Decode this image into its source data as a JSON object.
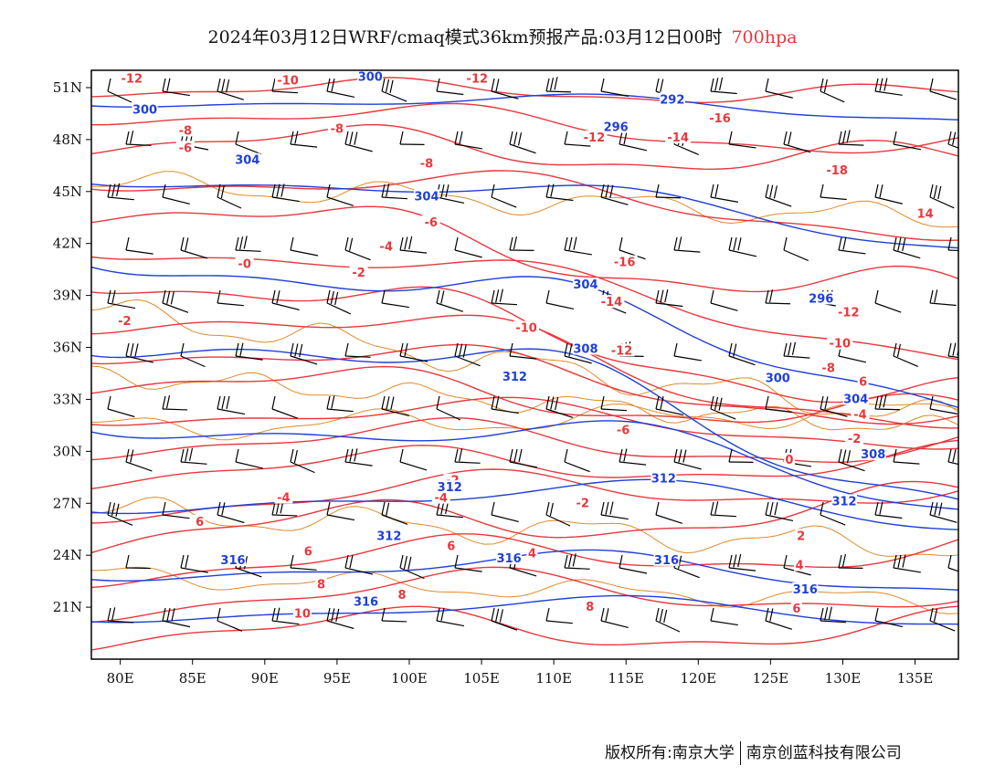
{
  "title": {
    "main": "2024年03月12日WRF/cmaq模式36km预报产品:03月12日00时",
    "level": "700hpa"
  },
  "footer": {
    "copyright": "版权所有:南京大学",
    "company": "南京创蓝科技有限公司"
  },
  "map": {
    "lon_range": [
      78,
      138
    ],
    "lat_range": [
      18,
      52
    ],
    "lon_ticks": [
      "80E",
      "85E",
      "90E",
      "95E",
      "100E",
      "105E",
      "110E",
      "115E",
      "120E",
      "125E",
      "130E",
      "135E"
    ],
    "lat_ticks": [
      "51N",
      "48N",
      "45N",
      "42N",
      "39N",
      "36N",
      "33N",
      "30N",
      "27N",
      "24N",
      "21N"
    ],
    "colors": {
      "temperature": "#e8383c",
      "geopotential": "#1f3fd8",
      "boundary": "#e08a2c",
      "wind": "#000000",
      "frame": "#000000"
    },
    "temperature_labels": [
      {
        "text": "-12",
        "lon": 80.8,
        "lat": 51.5
      },
      {
        "text": "-10",
        "lon": 91.6,
        "lat": 51.4
      },
      {
        "text": "-12",
        "lon": 104.7,
        "lat": 51.5
      },
      {
        "text": "-16",
        "lon": 121.5,
        "lat": 49.2
      },
      {
        "text": "-8",
        "lon": 84.5,
        "lat": 48.5
      },
      {
        "text": "-8",
        "lon": 95.0,
        "lat": 48.6
      },
      {
        "text": "-12",
        "lon": 112.8,
        "lat": 48.1
      },
      {
        "text": "-14",
        "lon": 118.6,
        "lat": 48.1
      },
      {
        "text": "-6",
        "lon": 84.5,
        "lat": 47.5
      },
      {
        "text": "-8",
        "lon": 101.2,
        "lat": 46.6
      },
      {
        "text": "-18",
        "lon": 129.6,
        "lat": 46.2
      },
      {
        "text": "-6",
        "lon": 101.5,
        "lat": 43.2
      },
      {
        "text": "-4",
        "lon": 98.4,
        "lat": 41.8
      },
      {
        "text": "14",
        "lon": 135.7,
        "lat": 43.7
      },
      {
        "text": "-0",
        "lon": 88.6,
        "lat": 40.8
      },
      {
        "text": "-2",
        "lon": 96.5,
        "lat": 40.3
      },
      {
        "text": "-16",
        "lon": 114.9,
        "lat": 40.9
      },
      {
        "text": "-14",
        "lon": 114.0,
        "lat": 38.6
      },
      {
        "text": "-12",
        "lon": 130.4,
        "lat": 38.0
      },
      {
        "text": "-2",
        "lon": 80.3,
        "lat": 37.5
      },
      {
        "text": "-10",
        "lon": 108.1,
        "lat": 37.1
      },
      {
        "text": "-12",
        "lon": 114.7,
        "lat": 35.8
      },
      {
        "text": "-10",
        "lon": 129.8,
        "lat": 36.2
      },
      {
        "text": "-8",
        "lon": 129.0,
        "lat": 34.8
      },
      {
        "text": "6",
        "lon": 131.4,
        "lat": 34.0
      },
      {
        "text": "-4",
        "lon": 131.2,
        "lat": 32.1
      },
      {
        "text": "-6",
        "lon": 114.8,
        "lat": 31.2
      },
      {
        "text": "-2",
        "lon": 130.8,
        "lat": 30.7
      },
      {
        "text": "-2",
        "lon": 103.0,
        "lat": 28.3
      },
      {
        "text": "-4",
        "lon": 102.2,
        "lat": 27.3
      },
      {
        "text": "-4",
        "lon": 91.3,
        "lat": 27.3
      },
      {
        "text": "0",
        "lon": 126.3,
        "lat": 29.5
      },
      {
        "text": "-2",
        "lon": 112.0,
        "lat": 27.0
      },
      {
        "text": "6",
        "lon": 85.5,
        "lat": 25.9
      },
      {
        "text": "6",
        "lon": 93.0,
        "lat": 24.2
      },
      {
        "text": "6",
        "lon": 102.9,
        "lat": 24.5
      },
      {
        "text": "4",
        "lon": 108.5,
        "lat": 24.1
      },
      {
        "text": "2",
        "lon": 127.1,
        "lat": 25.1
      },
      {
        "text": "4",
        "lon": 127.0,
        "lat": 23.4
      },
      {
        "text": "8",
        "lon": 93.9,
        "lat": 22.3
      },
      {
        "text": "8",
        "lon": 99.5,
        "lat": 21.7
      },
      {
        "text": "8",
        "lon": 112.5,
        "lat": 21.0
      },
      {
        "text": "6",
        "lon": 126.8,
        "lat": 20.9
      },
      {
        "text": "10",
        "lon": 92.6,
        "lat": 20.6
      }
    ],
    "height_labels": [
      {
        "text": "300",
        "lon": 81.7,
        "lat": 49.7
      },
      {
        "text": "300",
        "lon": 97.3,
        "lat": 51.6
      },
      {
        "text": "292",
        "lon": 118.2,
        "lat": 50.3
      },
      {
        "text": "296",
        "lon": 114.3,
        "lat": 48.7
      },
      {
        "text": "304",
        "lon": 88.8,
        "lat": 46.8
      },
      {
        "text": "304",
        "lon": 101.2,
        "lat": 44.7
      },
      {
        "text": "304",
        "lon": 112.2,
        "lat": 39.6
      },
      {
        "text": "296",
        "lon": 128.5,
        "lat": 38.8
      },
      {
        "text": "308",
        "lon": 112.2,
        "lat": 35.9
      },
      {
        "text": "312",
        "lon": 107.3,
        "lat": 34.3
      },
      {
        "text": "300",
        "lon": 125.5,
        "lat": 34.2
      },
      {
        "text": "304",
        "lon": 130.9,
        "lat": 33.0
      },
      {
        "text": "308",
        "lon": 132.1,
        "lat": 29.8
      },
      {
        "text": "312",
        "lon": 117.6,
        "lat": 28.4
      },
      {
        "text": "312",
        "lon": 102.8,
        "lat": 27.9
      },
      {
        "text": "312",
        "lon": 130.1,
        "lat": 27.1
      },
      {
        "text": "312",
        "lon": 98.6,
        "lat": 25.1
      },
      {
        "text": "316",
        "lon": 87.8,
        "lat": 23.7
      },
      {
        "text": "316",
        "lon": 106.9,
        "lat": 23.8
      },
      {
        "text": "316",
        "lon": 117.8,
        "lat": 23.7
      },
      {
        "text": "316",
        "lon": 97.0,
        "lat": 21.3
      },
      {
        "text": "316",
        "lon": 127.4,
        "lat": 22.0
      }
    ]
  }
}
